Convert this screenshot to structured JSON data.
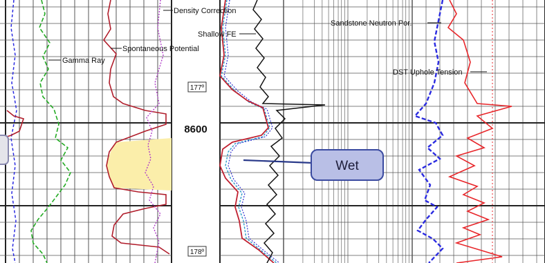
{
  "tracks": {
    "left_labels": {
      "density_correction": "Density Correction",
      "spontaneous_potential": "Spontaneous Potential",
      "gamma_ray": "Gamma Ray"
    },
    "depth": {
      "value": "8600",
      "temp_top": "177º",
      "temp_bottom": "178º"
    },
    "right_labels": {
      "shallow_fe": "Shallow FE",
      "sandstone_neutron_por": "Sandstone Neutron Por.",
      "dst_uphole_tension": "DST Uphole Tension"
    }
  },
  "callout": {
    "text": "Wet"
  },
  "colors": {
    "gamma_ray": "#22aa22",
    "spontaneous_potential": "#b01c2a",
    "density_correction": "#b03cc8",
    "neutron": "#2a2ae0",
    "resistivity": "#111111",
    "shading": "#fbeeaa",
    "callout_fill": "#b9bfe6",
    "callout_border": "#3a4aa0"
  }
}
